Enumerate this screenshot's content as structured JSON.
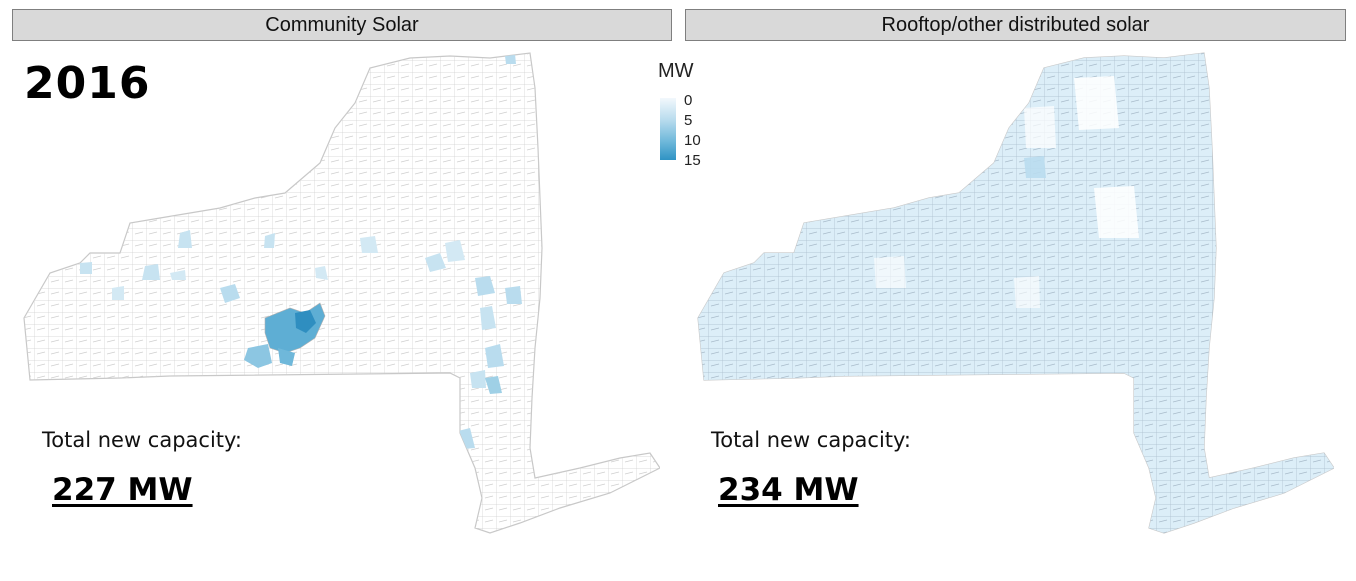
{
  "panels": {
    "left": {
      "title": "Community Solar",
      "capacity_label": "Total new capacity:",
      "capacity_value": "227 MW"
    },
    "right": {
      "title": "Rooftop/other distributed solar",
      "capacity_label": "Total new capacity:",
      "capacity_value": "234 MW"
    }
  },
  "year": "2016",
  "legend": {
    "title": "MW",
    "ticks": [
      "0",
      "5",
      "10",
      "15"
    ],
    "colors": {
      "low": "#f2f8fc",
      "mid": "#9fd0e6",
      "high": "#2f93c4"
    }
  },
  "map": {
    "region": "New York State",
    "boundary_color": "#c8c8c8",
    "community_solar_hotspots": "Finger Lakes / Southern Tier, Hudson Valley",
    "rooftop_fill": "#dceef8"
  }
}
